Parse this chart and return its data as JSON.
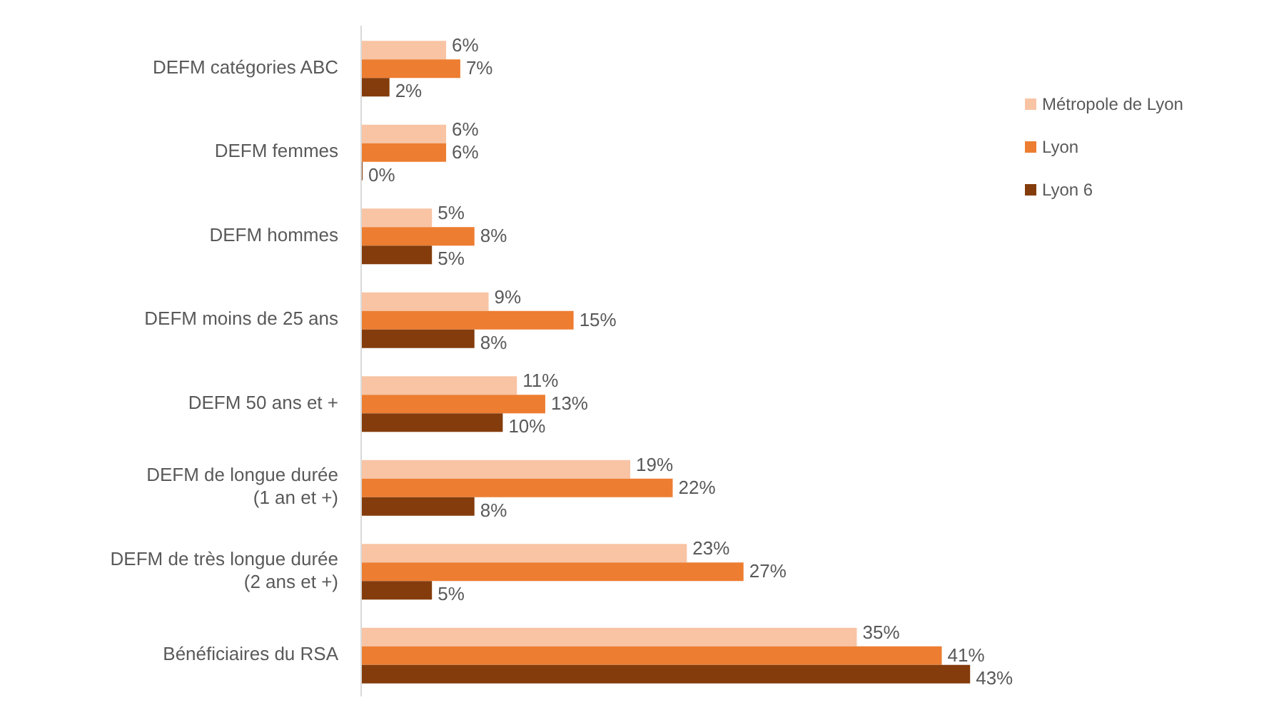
{
  "chart_data": {
    "type": "bar",
    "orientation": "horizontal",
    "categories": [
      "DEFM catégories ABC",
      "DEFM femmes",
      "DEFM hommes",
      "DEFM moins de 25 ans",
      "DEFM 50 ans et +",
      "DEFM de longue durée (1 an et +)",
      "DEFM de très longue durée (2 ans et +)",
      "Bénéficiaires du RSA"
    ],
    "series": [
      {
        "name": "Métropole de Lyon",
        "color": "#f8c4a4",
        "values": [
          6,
          6,
          5,
          9,
          11,
          19,
          23,
          35
        ],
        "value_labels": [
          "6%",
          "6%",
          "5%",
          "9%",
          "11%",
          "19%",
          "23%",
          "35%"
        ]
      },
      {
        "name": "Lyon",
        "color": "#ed7d31",
        "values": [
          7,
          6,
          8,
          15,
          13,
          22,
          27,
          41
        ],
        "value_labels": [
          "7%",
          "6%",
          "8%",
          "15%",
          "13%",
          "22%",
          "27%",
          "41%"
        ]
      },
      {
        "name": "Lyon 6",
        "color": "#843c0c",
        "values": [
          2,
          0,
          5,
          8,
          10,
          8,
          5,
          43
        ],
        "value_labels": [
          "2%",
          "0%",
          "5%",
          "8%",
          "10%",
          "8%",
          "5%",
          "43%"
        ]
      }
    ],
    "tick_labels": "y",
    "legend": "top right"
  }
}
